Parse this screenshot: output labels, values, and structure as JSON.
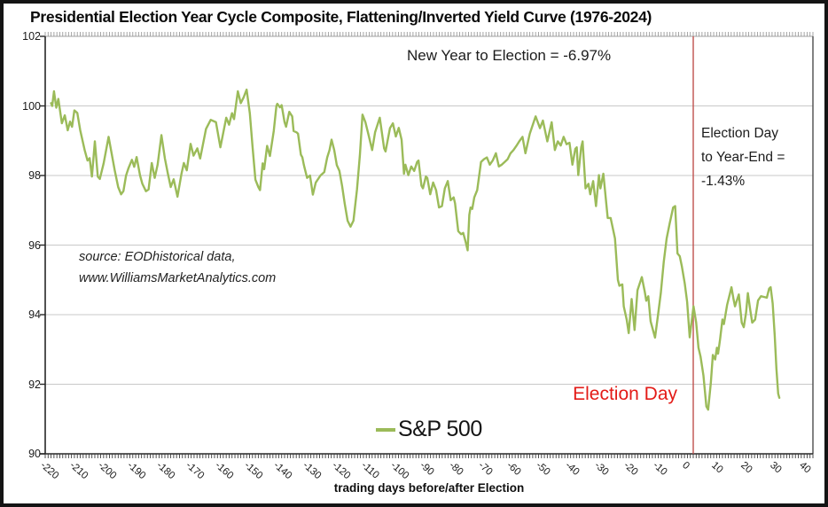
{
  "title": "Presidential Election Year Cycle Composite, Flattening/Inverted Yield Curve (1976-2024)",
  "annotations": {
    "new_year_to_election": "New Year to Election = -6.97%",
    "right_block_line1": "Election Day",
    "right_block_line2": "to Year-End =",
    "right_block_line3": "-1.43%",
    "election_day_label": "Election Day"
  },
  "source": {
    "line1": "source: EODhistorical data,",
    "line2": "www.WilliamsMarketAnalytics.com"
  },
  "legend": {
    "label": "S&P 500"
  },
  "axes": {
    "x_title": "trading days before/after Election",
    "y_ticks": [
      102,
      100,
      98,
      96,
      94,
      92,
      90
    ],
    "x_ticks": [
      -220,
      -210,
      -200,
      -190,
      -180,
      -170,
      -160,
      -150,
      -140,
      -130,
      -120,
      -110,
      -100,
      -90,
      -80,
      -70,
      -60,
      -50,
      -40,
      -30,
      -20,
      -10,
      0,
      10,
      20,
      30,
      40
    ]
  },
  "colors": {
    "line": "#9bbb59",
    "vline": "#c0504d",
    "red_text": "#e31b17",
    "grid": "#c9c9c9",
    "axis": "#262626",
    "border_top": "#b3b3b3",
    "border_right": "#4d4d4d"
  },
  "chart_data": {
    "type": "line",
    "title": "Presidential Election Year Cycle Composite, Flattening/Inverted Yield Curve (1976-2024)",
    "xlabel": "trading days before/after Election",
    "ylabel": "",
    "ylim": [
      90,
      102
    ],
    "xlim": [
      -222,
      41
    ],
    "grid": "horizontal",
    "legend_position": "bottom-center",
    "election_day_x": 0,
    "stats": {
      "new_year_to_election_pct": -6.97,
      "election_day_to_year_end_pct": -1.43
    },
    "series": [
      {
        "name": "S&P 500",
        "points": [
          [
            -220,
            100.08
          ],
          [
            -219.6,
            100.0
          ],
          [
            -219,
            100.42
          ],
          [
            -218.2,
            99.95
          ],
          [
            -217.5,
            100.2
          ],
          [
            -216.3,
            99.5
          ],
          [
            -215.3,
            99.73
          ],
          [
            -214.3,
            99.3
          ],
          [
            -213.5,
            99.55
          ],
          [
            -212.8,
            99.4
          ],
          [
            -212,
            99.87
          ],
          [
            -211,
            99.8
          ],
          [
            -210,
            99.3
          ],
          [
            -208.5,
            98.73
          ],
          [
            -207.5,
            98.43
          ],
          [
            -206.8,
            98.5
          ],
          [
            -206,
            97.97
          ],
          [
            -205,
            98.98
          ],
          [
            -204,
            97.97
          ],
          [
            -203.3,
            97.9
          ],
          [
            -202,
            98.35
          ],
          [
            -200.3,
            99.11
          ],
          [
            -198.2,
            98.15
          ],
          [
            -197,
            97.67
          ],
          [
            -196,
            97.46
          ],
          [
            -195.2,
            97.55
          ],
          [
            -194.3,
            98.0
          ],
          [
            -193.5,
            98.2
          ],
          [
            -192.3,
            98.45
          ],
          [
            -191.5,
            98.25
          ],
          [
            -190.7,
            98.53
          ],
          [
            -189.5,
            98.0
          ],
          [
            -188.7,
            97.76
          ],
          [
            -187.5,
            97.55
          ],
          [
            -186.6,
            97.6
          ],
          [
            -185.5,
            98.36
          ],
          [
            -184.5,
            97.93
          ],
          [
            -183.5,
            98.31
          ],
          [
            -182.2,
            99.16
          ],
          [
            -181,
            98.49
          ],
          [
            -180,
            98.06
          ],
          [
            -179,
            97.67
          ],
          [
            -178,
            97.89
          ],
          [
            -176.7,
            97.39
          ],
          [
            -175.3,
            98.06
          ],
          [
            -174.5,
            98.36
          ],
          [
            -173.5,
            98.15
          ],
          [
            -172.2,
            98.91
          ],
          [
            -171.2,
            98.57
          ],
          [
            -169.9,
            98.78
          ],
          [
            -168.9,
            98.49
          ],
          [
            -166.9,
            99.34
          ],
          [
            -165.3,
            99.6
          ],
          [
            -163.5,
            99.53
          ],
          [
            -162,
            98.81
          ],
          [
            -160,
            99.66
          ],
          [
            -159,
            99.46
          ],
          [
            -158,
            99.79
          ],
          [
            -157.3,
            99.62
          ],
          [
            -156,
            100.42
          ],
          [
            -155,
            100.08
          ],
          [
            -154,
            100.25
          ],
          [
            -153,
            100.47
          ],
          [
            -151.9,
            99.79
          ],
          [
            -151,
            98.85
          ],
          [
            -150,
            97.88
          ],
          [
            -149,
            97.67
          ],
          [
            -148.4,
            97.58
          ],
          [
            -147.5,
            98.35
          ],
          [
            -147,
            98.18
          ],
          [
            -146,
            98.85
          ],
          [
            -145,
            98.56
          ],
          [
            -143.7,
            99.28
          ],
          [
            -142.8,
            100.0
          ],
          [
            -142.5,
            100.06
          ],
          [
            -141.6,
            99.96
          ],
          [
            -141,
            100.02
          ],
          [
            -140,
            99.53
          ],
          [
            -139.5,
            99.4
          ],
          [
            -138.4,
            99.83
          ],
          [
            -137.4,
            99.7
          ],
          [
            -136.9,
            99.28
          ],
          [
            -135.9,
            99.24
          ],
          [
            -135.4,
            99.2
          ],
          [
            -134.4,
            98.6
          ],
          [
            -133.9,
            98.52
          ],
          [
            -133.4,
            98.31
          ],
          [
            -132.3,
            97.93
          ],
          [
            -131.3,
            98.0
          ],
          [
            -130.3,
            97.45
          ],
          [
            -129.3,
            97.8
          ],
          [
            -127.7,
            98.0
          ],
          [
            -126.4,
            98.1
          ],
          [
            -125.4,
            98.52
          ],
          [
            -124.6,
            98.73
          ],
          [
            -123.9,
            99.03
          ],
          [
            -123,
            98.73
          ],
          [
            -122.1,
            98.3
          ],
          [
            -121.2,
            98.13
          ],
          [
            -120.3,
            97.7
          ],
          [
            -119.4,
            97.2
          ],
          [
            -118.4,
            96.7
          ],
          [
            -117.4,
            96.53
          ],
          [
            -116.4,
            96.7
          ],
          [
            -115.2,
            97.6
          ],
          [
            -114.2,
            98.6
          ],
          [
            -113.3,
            99.75
          ],
          [
            -112.3,
            99.53
          ],
          [
            -111.3,
            99.19
          ],
          [
            -110,
            98.73
          ],
          [
            -109,
            99.24
          ],
          [
            -107.4,
            99.66
          ],
          [
            -105.9,
            98.78
          ],
          [
            -105.4,
            98.69
          ],
          [
            -103.9,
            99.36
          ],
          [
            -102.9,
            99.5
          ],
          [
            -101.9,
            99.12
          ],
          [
            -100.9,
            99.37
          ],
          [
            -99.9,
            99.03
          ],
          [
            -99.1,
            98.05
          ],
          [
            -98.6,
            98.31
          ],
          [
            -97.6,
            98.01
          ],
          [
            -96.6,
            98.26
          ],
          [
            -95.6,
            98.13
          ],
          [
            -94.6,
            98.39
          ],
          [
            -94.1,
            98.43
          ],
          [
            -93.1,
            97.71
          ],
          [
            -92.6,
            97.63
          ],
          [
            -91.6,
            97.97
          ],
          [
            -91.1,
            97.93
          ],
          [
            -90.1,
            97.46
          ],
          [
            -89.1,
            97.8
          ],
          [
            -88.1,
            97.58
          ],
          [
            -87.1,
            97.08
          ],
          [
            -86.1,
            97.12
          ],
          [
            -85.1,
            97.63
          ],
          [
            -84.1,
            97.84
          ],
          [
            -83.1,
            97.29
          ],
          [
            -82.1,
            97.37
          ],
          [
            -81.6,
            97.2
          ],
          [
            -80.5,
            96.4
          ],
          [
            -79.5,
            96.31
          ],
          [
            -78.8,
            96.35
          ],
          [
            -78,
            96.1
          ],
          [
            -77.3,
            95.85
          ],
          [
            -76.7,
            96.87
          ],
          [
            -76.3,
            97.08
          ],
          [
            -75.7,
            97.04
          ],
          [
            -75,
            97.37
          ],
          [
            -74,
            97.58
          ],
          [
            -72.7,
            98.39
          ],
          [
            -71.7,
            98.47
          ],
          [
            -70.7,
            98.52
          ],
          [
            -69.7,
            98.31
          ],
          [
            -68.7,
            98.43
          ],
          [
            -67.6,
            98.64
          ],
          [
            -66.6,
            98.26
          ],
          [
            -65.6,
            98.31
          ],
          [
            -64.6,
            98.39
          ],
          [
            -63.6,
            98.47
          ],
          [
            -62.6,
            98.64
          ],
          [
            -61.6,
            98.73
          ],
          [
            -60.6,
            98.85
          ],
          [
            -59.6,
            98.98
          ],
          [
            -58.5,
            99.11
          ],
          [
            -57.5,
            98.64
          ],
          [
            -56,
            99.2
          ],
          [
            -54,
            99.7
          ],
          [
            -52.5,
            99.36
          ],
          [
            -51.5,
            99.58
          ],
          [
            -50,
            98.98
          ],
          [
            -48.5,
            99.53
          ],
          [
            -47.4,
            98.73
          ],
          [
            -46.4,
            98.98
          ],
          [
            -45.4,
            98.86
          ],
          [
            -44.4,
            99.11
          ],
          [
            -43.4,
            98.9
          ],
          [
            -42.4,
            98.94
          ],
          [
            -41.4,
            98.31
          ],
          [
            -40.4,
            98.77
          ],
          [
            -39.9,
            98.81
          ],
          [
            -39.4,
            98.01
          ],
          [
            -38.4,
            98.81
          ],
          [
            -37.9,
            98.98
          ],
          [
            -36.9,
            97.63
          ],
          [
            -35.9,
            97.76
          ],
          [
            -35.3,
            97.46
          ],
          [
            -34.3,
            97.84
          ],
          [
            -33.3,
            97.12
          ],
          [
            -32.3,
            98.01
          ],
          [
            -31.8,
            97.63
          ],
          [
            -30.8,
            98.05
          ],
          [
            -29.3,
            96.78
          ],
          [
            -28.3,
            96.78
          ],
          [
            -26.8,
            96.19
          ],
          [
            -25.8,
            95.0
          ],
          [
            -25.3,
            94.83
          ],
          [
            -24.3,
            94.87
          ],
          [
            -23.8,
            94.24
          ],
          [
            -22.8,
            93.86
          ],
          [
            -22.1,
            93.47
          ],
          [
            -21.1,
            94.45
          ],
          [
            -20.1,
            93.56
          ],
          [
            -19.1,
            94.7
          ],
          [
            -17.6,
            95.08
          ],
          [
            -16.6,
            94.66
          ],
          [
            -16.1,
            94.4
          ],
          [
            -15.4,
            94.53
          ],
          [
            -14.6,
            93.81
          ],
          [
            -13.1,
            93.34
          ],
          [
            -12.1,
            93.98
          ],
          [
            -11.1,
            94.62
          ],
          [
            -10.1,
            95.51
          ],
          [
            -9.1,
            96.19
          ],
          [
            -8.1,
            96.61
          ],
          [
            -6.9,
            97.08
          ],
          [
            -6.2,
            97.12
          ],
          [
            -5.4,
            95.76
          ],
          [
            -4.6,
            95.68
          ],
          [
            -3.9,
            95.38
          ],
          [
            -2.9,
            94.9
          ],
          [
            -2.1,
            94.37
          ],
          [
            -1.2,
            93.35
          ],
          [
            0.1,
            94.24
          ],
          [
            1,
            93.77
          ],
          [
            1.8,
            93.05
          ],
          [
            2.5,
            92.8
          ],
          [
            3.5,
            92.25
          ],
          [
            4.5,
            91.36
          ],
          [
            5.1,
            91.27
          ],
          [
            6,
            92.03
          ],
          [
            6.7,
            92.84
          ],
          [
            7.5,
            92.71
          ],
          [
            8.1,
            93.05
          ],
          [
            8.5,
            92.88
          ],
          [
            9.2,
            93.3
          ],
          [
            10,
            93.86
          ],
          [
            10.5,
            93.73
          ],
          [
            11.6,
            94.28
          ],
          [
            12.6,
            94.62
          ],
          [
            13.1,
            94.79
          ],
          [
            13.8,
            94.45
          ],
          [
            14.3,
            94.24
          ],
          [
            14.9,
            94.4
          ],
          [
            15.6,
            94.58
          ],
          [
            16.6,
            93.77
          ],
          [
            17.3,
            93.64
          ],
          [
            18.1,
            94.06
          ],
          [
            18.7,
            94.62
          ],
          [
            19.5,
            94.15
          ],
          [
            20.2,
            93.77
          ],
          [
            21.2,
            93.86
          ],
          [
            22.2,
            94.41
          ],
          [
            23.2,
            94.53
          ],
          [
            24.2,
            94.51
          ],
          [
            25.2,
            94.49
          ],
          [
            26,
            94.75
          ],
          [
            26.5,
            94.79
          ],
          [
            27.2,
            94.32
          ],
          [
            27.9,
            93.4
          ],
          [
            28.5,
            92.45
          ],
          [
            29.1,
            91.73
          ],
          [
            29.5,
            91.61
          ]
        ]
      }
    ]
  }
}
